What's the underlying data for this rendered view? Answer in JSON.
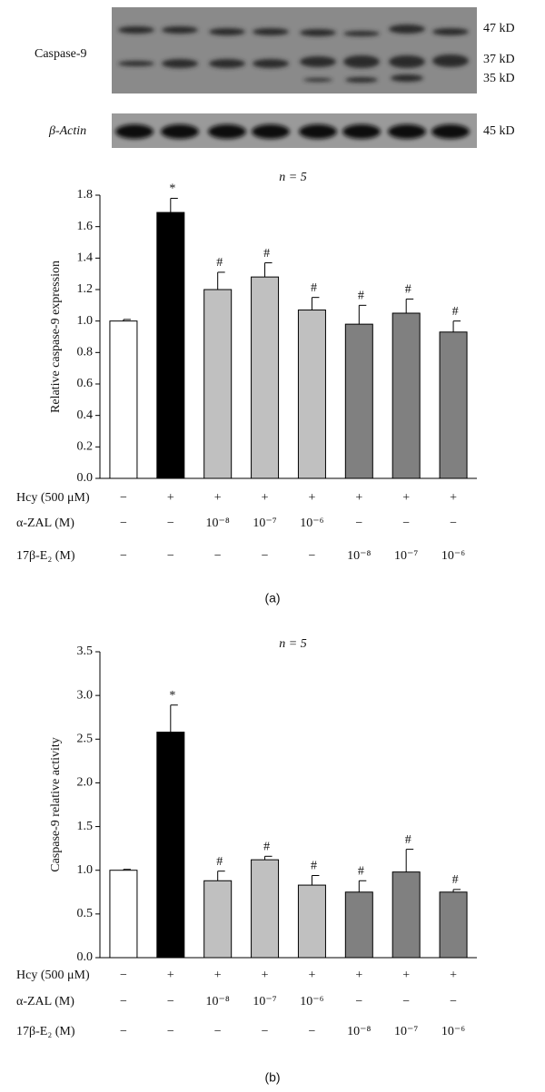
{
  "blot": {
    "rows": [
      {
        "label": "Caspase-9",
        "sizes": [
          "47 kD",
          "37 kD",
          "35 kD"
        ]
      },
      {
        "label": "β-Actin",
        "sizes": [
          "45 kD"
        ]
      }
    ]
  },
  "chart_data": [
    {
      "type": "bar",
      "title": "n = 5",
      "ylabel": "Relative caspase-9 expression",
      "panel": "(a)",
      "categories": [
        null,
        null,
        null,
        null,
        null,
        null,
        null,
        null
      ],
      "values": [
        1.0,
        1.69,
        1.2,
        1.28,
        1.07,
        0.98,
        1.05,
        0.93
      ],
      "errors": [
        0.01,
        0.09,
        0.11,
        0.09,
        0.08,
        0.12,
        0.09,
        0.07
      ],
      "colors": [
        "#ffffff",
        "#000000",
        "#c0c0c0",
        "#c0c0c0",
        "#c0c0c0",
        "#808080",
        "#808080",
        "#808080"
      ],
      "annotations": [
        null,
        "*",
        "#",
        "#",
        "#",
        "#",
        "#",
        "#"
      ],
      "ylim": [
        0,
        1.8
      ],
      "yticks": [
        {
          "value": 0,
          "label": "0.0"
        },
        0.2,
        0.4,
        0.6,
        0.8,
        {
          "value": 1,
          "label": "1.0"
        },
        1.2,
        1.4,
        1.6,
        1.8
      ],
      "treatments": [
        {
          "name": "Hcy (500 μM)",
          "values": [
            "−",
            "+",
            "+",
            "+",
            "+",
            "+",
            "+",
            "+"
          ]
        },
        {
          "name": "α-ZAL (M)",
          "values": [
            "−",
            "−",
            "10⁻⁸",
            "10⁻⁷",
            "10⁻⁶",
            "−",
            "−",
            "−"
          ]
        },
        {
          "name": "17β-E₂ (M)",
          "values": [
            "−",
            "−",
            "−",
            "−",
            "−",
            "10⁻⁸",
            "10⁻⁷",
            "10⁻⁶"
          ]
        }
      ]
    },
    {
      "type": "bar",
      "title": "n = 5",
      "ylabel": "Caspase-9 relative activity",
      "panel": "(b)",
      "categories": [
        null,
        null,
        null,
        null,
        null,
        null,
        null,
        null
      ],
      "values": [
        1.0,
        2.58,
        0.88,
        1.12,
        0.83,
        0.75,
        0.98,
        0.75
      ],
      "errors": [
        0.01,
        0.31,
        0.11,
        0.04,
        0.11,
        0.13,
        0.26,
        0.03
      ],
      "colors": [
        "#ffffff",
        "#000000",
        "#c0c0c0",
        "#c0c0c0",
        "#c0c0c0",
        "#808080",
        "#808080",
        "#808080"
      ],
      "annotations": [
        null,
        "*",
        "#",
        "#",
        "#",
        "#",
        "#",
        "#"
      ],
      "ylim": [
        0,
        3.5
      ],
      "yticks": [
        {
          "value": 0,
          "label": "0.0"
        },
        0.5,
        {
          "value": 1,
          "label": "1.0"
        },
        1.5,
        {
          "value": 2,
          "label": "2.0"
        },
        2.5,
        {
          "value": 3,
          "label": "3.0"
        },
        3.5
      ],
      "treatments": [
        {
          "name": "Hcy (500 μM)",
          "values": [
            "−",
            "+",
            "+",
            "+",
            "+",
            "+",
            "+",
            "+"
          ]
        },
        {
          "name": "α-ZAL (M)",
          "values": [
            "−",
            "−",
            "10⁻⁸",
            "10⁻⁷",
            "10⁻⁶",
            "−",
            "−",
            "−"
          ]
        },
        {
          "name": "17β-E₂ (M)",
          "values": [
            "−",
            "−",
            "−",
            "−",
            "−",
            "10⁻⁸",
            "10⁻⁷",
            "10⁻⁶"
          ]
        }
      ]
    }
  ]
}
